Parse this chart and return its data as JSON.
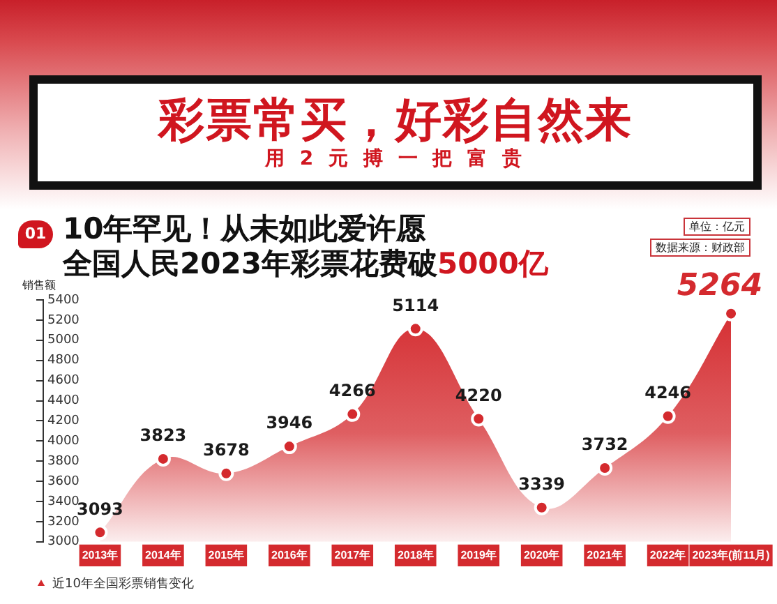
{
  "chart_data": {
    "type": "area",
    "title": "彩票常买，好彩自然来",
    "subtitle": "用 2 元 搏 一 把 富 贵",
    "annotations": [
      "01",
      "10年罕见！从未如此爱许愿",
      "全国人民2023年彩票花费破5000亿",
      "单位：亿元",
      "数据来源：财政部"
    ],
    "ylabel": "销售额",
    "categories": [
      "2013年",
      "2014年",
      "2015年",
      "2016年",
      "2017年",
      "2018年",
      "2019年",
      "2020年",
      "2021年",
      "2022年",
      "2023年(前11月)"
    ],
    "series": [
      {
        "name": "近10年全国彩票销售变化",
        "color": "#d42a2e",
        "values": [
          3093,
          3823,
          3678,
          3946,
          4266,
          5114,
          4220,
          3339,
          3732,
          4246,
          5264
        ]
      }
    ],
    "ylim": [
      3000,
      5400
    ],
    "yticks": [
      3000,
      3200,
      3400,
      3600,
      3800,
      4000,
      4200,
      4400,
      4600,
      4800,
      5000,
      5200,
      5400
    ],
    "grid": false,
    "legend": "bottom left",
    "marker": "circle",
    "data_labels": true
  }
}
